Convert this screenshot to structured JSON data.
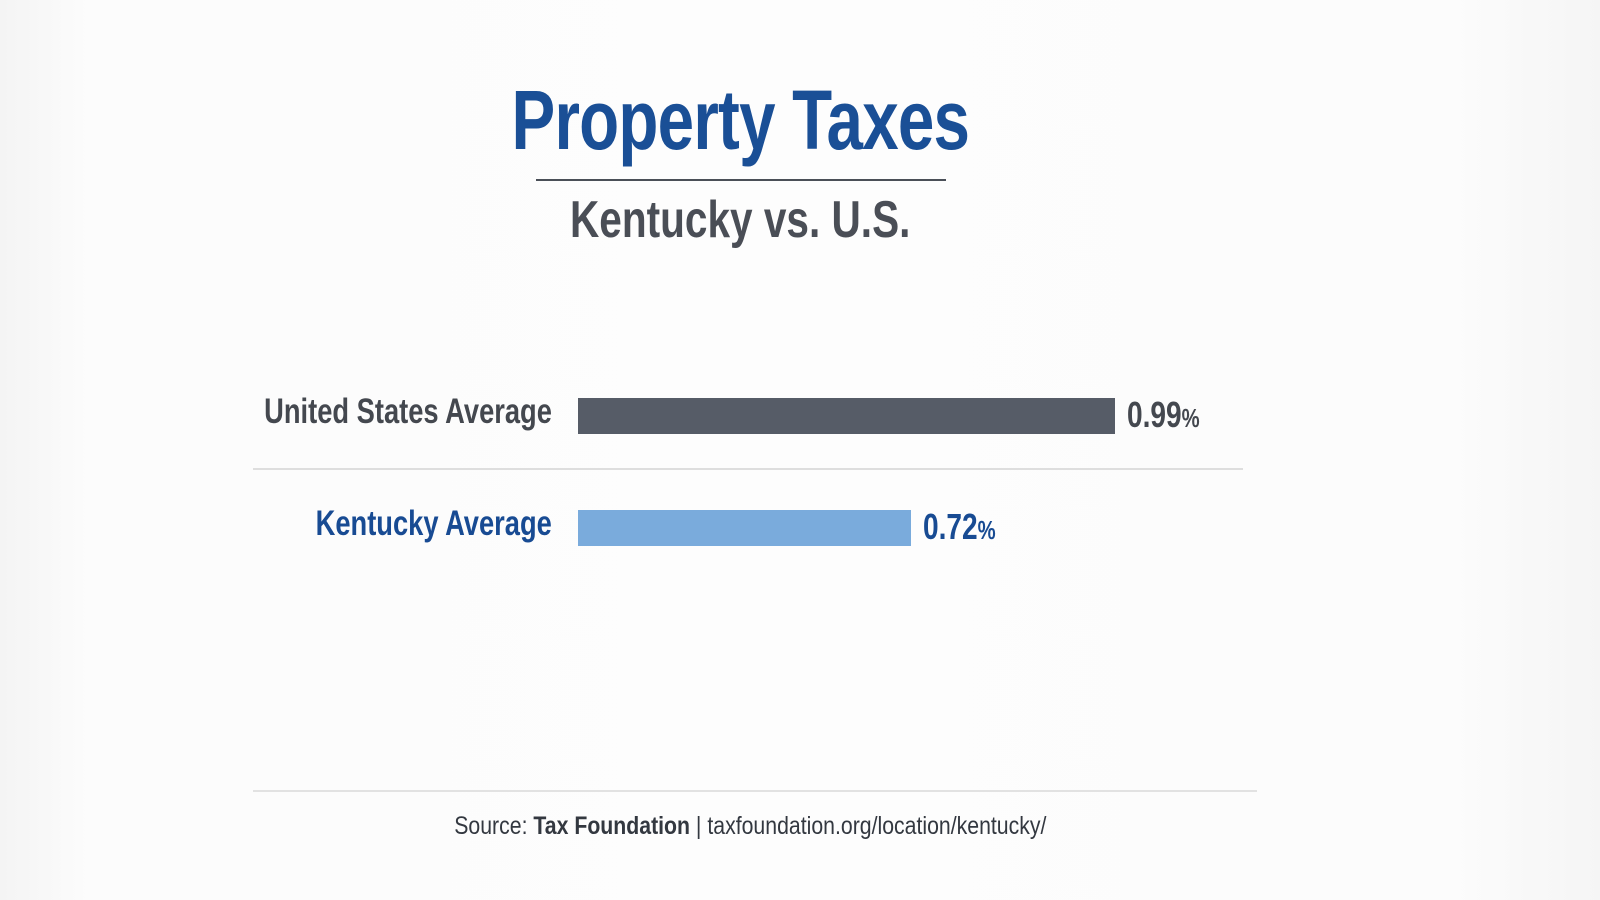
{
  "chart_data": {
    "type": "bar",
    "orientation": "horizontal",
    "title": "Property Taxes",
    "subtitle": "Kentucky vs. U.S.",
    "categories": [
      "United States Average",
      "Kentucky Average"
    ],
    "values": [
      0.99,
      0.72
    ],
    "value_labels": [
      "0.99",
      "0.72"
    ],
    "unit": "%",
    "xlim": [
      0.28,
      1.0
    ],
    "colors": [
      "#565c67",
      "#7aabdc"
    ],
    "label_colors": [
      "#44484f",
      "#184b93"
    ],
    "grid": false
  },
  "footer": {
    "source_prefix": "Source:",
    "source_name": "Tax Foundation",
    "separator": "|",
    "source_url": "taxfoundation.org/location/kentucky/"
  }
}
